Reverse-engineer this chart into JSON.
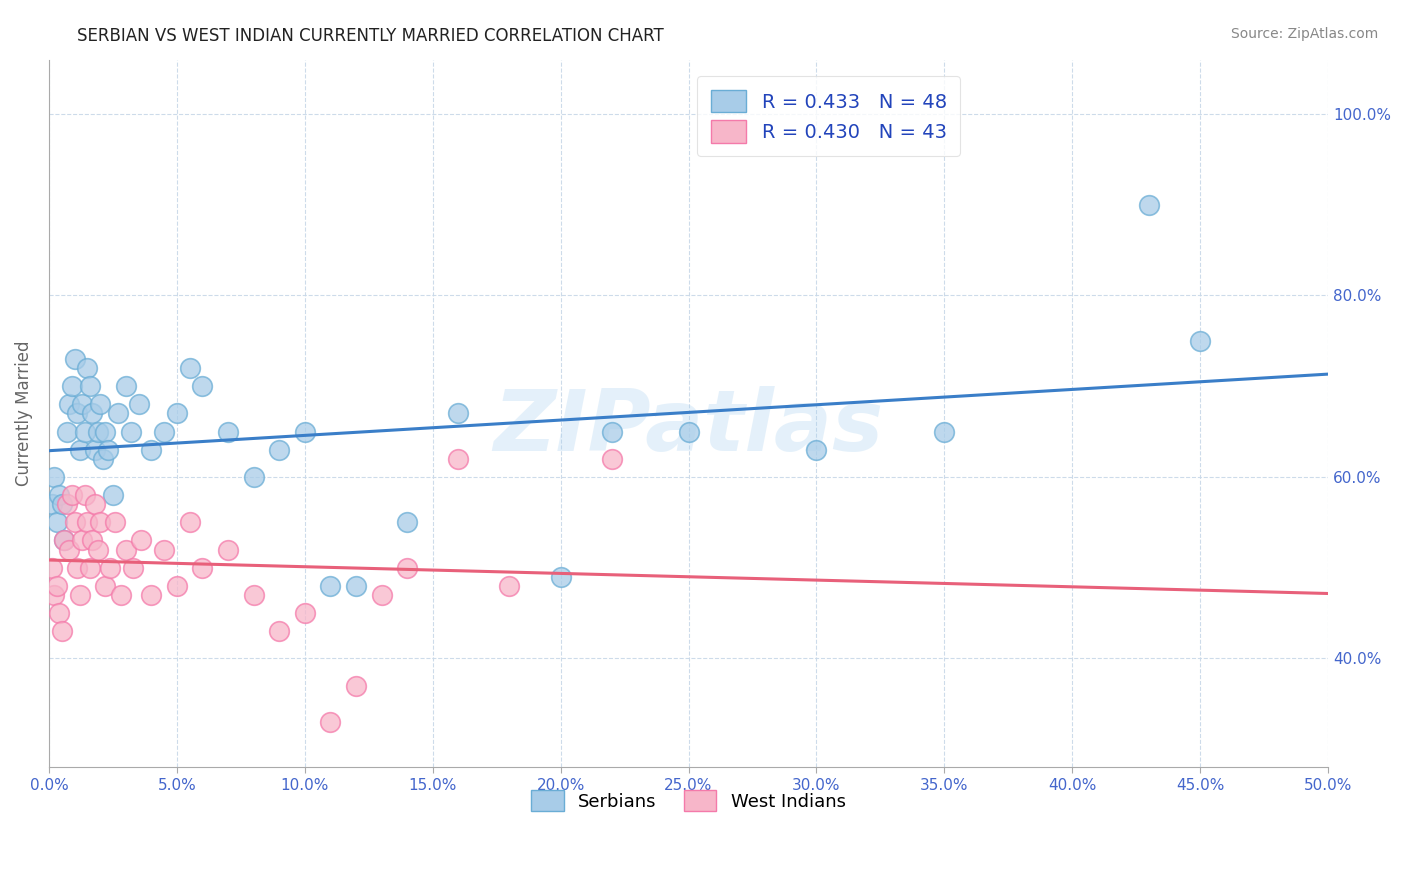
{
  "title": "SERBIAN VS WEST INDIAN CURRENTLY MARRIED CORRELATION CHART",
  "source_text": "Source: ZipAtlas.com",
  "xlabel": "",
  "ylabel": "Currently Married",
  "xlim": [
    0.0,
    50.0
  ],
  "ylim": [
    28.0,
    106.0
  ],
  "x_ticks": [
    0.0,
    5.0,
    10.0,
    15.0,
    20.0,
    25.0,
    30.0,
    35.0,
    40.0,
    45.0,
    50.0
  ],
  "y_ticks_right": [
    40.0,
    60.0,
    80.0,
    100.0
  ],
  "serbian_color": "#a8cce8",
  "west_indian_color": "#f7b6c9",
  "serbian_edge": "#6aadd5",
  "west_indian_edge": "#f47aaa",
  "trend_serbian_color": "#3a7ec8",
  "trend_west_indian_color": "#e8607a",
  "r_serbian": 0.433,
  "n_serbian": 48,
  "r_west_indian": 0.43,
  "n_west_indian": 43,
  "watermark": "ZIPatlas",
  "background_color": "#ffffff",
  "grid_color": "#c8d8e8",
  "title_color": "#222222",
  "tick_color": "#4466cc",
  "legend_label_color": "#2244bb",
  "serbian_x": [
    0.1,
    0.2,
    0.3,
    0.4,
    0.5,
    0.6,
    0.7,
    0.8,
    0.9,
    1.0,
    1.1,
    1.2,
    1.3,
    1.4,
    1.5,
    1.6,
    1.7,
    1.8,
    1.9,
    2.0,
    2.1,
    2.2,
    2.3,
    2.5,
    2.7,
    3.0,
    3.2,
    3.5,
    4.0,
    4.5,
    5.0,
    5.5,
    6.0,
    7.0,
    8.0,
    9.0,
    10.0,
    11.0,
    12.0,
    14.0,
    16.0,
    20.0,
    22.0,
    25.0,
    30.0,
    35.0,
    43.0,
    45.0
  ],
  "serbian_y": [
    57.0,
    60.0,
    55.0,
    58.0,
    57.0,
    53.0,
    65.0,
    68.0,
    70.0,
    73.0,
    67.0,
    63.0,
    68.0,
    65.0,
    72.0,
    70.0,
    67.0,
    63.0,
    65.0,
    68.0,
    62.0,
    65.0,
    63.0,
    58.0,
    67.0,
    70.0,
    65.0,
    68.0,
    63.0,
    65.0,
    67.0,
    72.0,
    70.0,
    65.0,
    60.0,
    63.0,
    65.0,
    48.0,
    48.0,
    55.0,
    67.0,
    49.0,
    65.0,
    65.0,
    63.0,
    65.0,
    90.0,
    75.0
  ],
  "west_indian_x": [
    0.1,
    0.2,
    0.3,
    0.4,
    0.5,
    0.6,
    0.7,
    0.8,
    0.9,
    1.0,
    1.1,
    1.2,
    1.3,
    1.4,
    1.5,
    1.6,
    1.7,
    1.8,
    1.9,
    2.0,
    2.2,
    2.4,
    2.6,
    2.8,
    3.0,
    3.3,
    3.6,
    4.0,
    4.5,
    5.0,
    5.5,
    6.0,
    7.0,
    8.0,
    9.0,
    10.0,
    11.0,
    12.0,
    13.0,
    14.0,
    16.0,
    18.0,
    22.0
  ],
  "west_indian_y": [
    50.0,
    47.0,
    48.0,
    45.0,
    43.0,
    53.0,
    57.0,
    52.0,
    58.0,
    55.0,
    50.0,
    47.0,
    53.0,
    58.0,
    55.0,
    50.0,
    53.0,
    57.0,
    52.0,
    55.0,
    48.0,
    50.0,
    55.0,
    47.0,
    52.0,
    50.0,
    53.0,
    47.0,
    52.0,
    48.0,
    55.0,
    50.0,
    52.0,
    47.0,
    43.0,
    45.0,
    33.0,
    37.0,
    47.0,
    50.0,
    62.0,
    48.0,
    62.0
  ]
}
